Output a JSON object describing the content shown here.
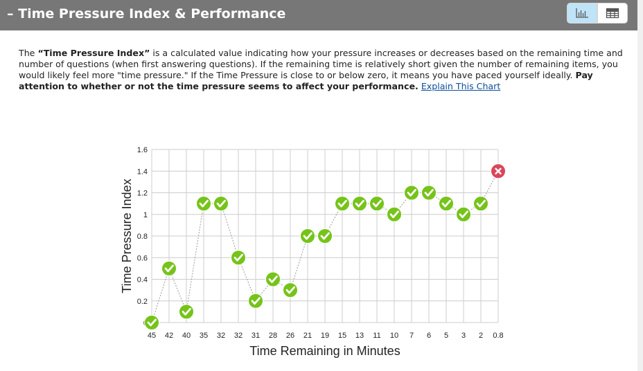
{
  "header": {
    "title": "Time Pressure Index & Performance",
    "toggle_chart_icon": "bar-chart-icon",
    "toggle_table_icon": "table-icon"
  },
  "description": {
    "part1": "The ",
    "term": "“Time Pressure Index”",
    "part2": " is a calculated value indicating how your pressure increases or decreases based on the remaining time and number of questions (when first answering questions). If the remaining time is relatively short given the number of remaining items, you would likely feel more \"time pressure.\" If the Time Pressure is close to or below zero, it means you have paced yourself ideally. ",
    "emphasis": "Pay attention to whether or not the time pressure seems to affect your performance.",
    "link": "Explain This Chart"
  },
  "colors": {
    "correct": "#76c31a",
    "incorrect": "#d9475a",
    "header_bg": "#777777",
    "active_toggle": "#bfe3f7"
  },
  "chart_data": {
    "type": "line",
    "xlabel": "Time Remaining in Minutes",
    "ylabel": "Time Pressure Index",
    "ylim": [
      0,
      1.6
    ],
    "y_ticks": [
      "0",
      "0.2",
      "0.4",
      "0.6",
      "0.8",
      "1",
      "1.2",
      "1.4",
      "1.6"
    ],
    "categories": [
      "45",
      "42",
      "40",
      "35",
      "32",
      "32",
      "31",
      "28",
      "26",
      "21",
      "19",
      "15",
      "13",
      "11",
      "10",
      "7",
      "6",
      "5",
      "3",
      "2",
      "0.8"
    ],
    "values": [
      0,
      0.5,
      0.1,
      1.1,
      1.1,
      0.6,
      0.2,
      0.4,
      0.3,
      0.8,
      0.8,
      1.1,
      1.1,
      1.1,
      1.0,
      1.2,
      1.2,
      1.1,
      1.0,
      1.1,
      1.4
    ],
    "result": [
      "correct",
      "correct",
      "correct",
      "correct",
      "correct",
      "correct",
      "correct",
      "correct",
      "correct",
      "correct",
      "correct",
      "correct",
      "correct",
      "correct",
      "correct",
      "correct",
      "correct",
      "correct",
      "correct",
      "correct",
      "incorrect"
    ],
    "grid": true,
    "line_style": "dotted"
  }
}
